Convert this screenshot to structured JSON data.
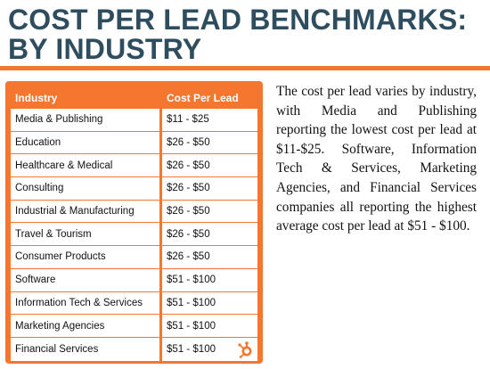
{
  "title": {
    "line1": "COST PER LEAD BENCHMARKS:",
    "line2": "BY INDUSTRY"
  },
  "table": {
    "headers": [
      "Industry",
      "Cost Per Lead"
    ],
    "rows": [
      {
        "industry": "Media & Publishing",
        "cost": "$11 - $25"
      },
      {
        "industry": "Education",
        "cost": "$26 - $50"
      },
      {
        "industry": "Healthcare & Medical",
        "cost": "$26 - $50"
      },
      {
        "industry": "Consulting",
        "cost": "$26 - $50"
      },
      {
        "industry": "Industrial & Manufacturing",
        "cost": "$26 - $50"
      },
      {
        "industry": "Travel & Tourism",
        "cost": "$26 - $50"
      },
      {
        "industry": "Consumer Products",
        "cost": "$26 - $50"
      },
      {
        "industry": "Software",
        "cost": "$51 - $100"
      },
      {
        "industry": "Information Tech & Services",
        "cost": "$51 - $100"
      },
      {
        "industry": "Marketing Agencies",
        "cost": "$51 - $100"
      },
      {
        "industry": "Financial Services",
        "cost": "$51 - $100"
      }
    ]
  },
  "description": "The cost per lead varies by industry, with Media and Publishing reporting the lowest cost per lead at $11-$25. Software, Information Tech & Services, Marketing Agencies, and Financial Services companies all reporting the highest average cost per lead at $51 - $100.",
  "logo": {
    "icon": "hubspot-sprocket-icon"
  },
  "colors": {
    "title": "#2e4d5e",
    "accent": "#f4762f",
    "text": "#111111"
  }
}
